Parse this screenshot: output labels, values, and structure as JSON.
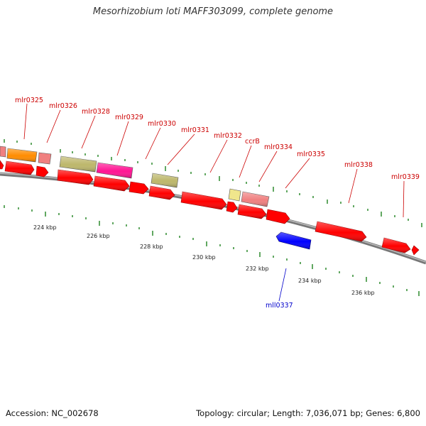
{
  "title": "Mesorhizobium loti MAFF303099, complete genome",
  "footer": {
    "accession": "Accession: NC_002678",
    "summary": "Topology: circular; Length: 7,036,071 bp; Genes: 6,800"
  },
  "colors": {
    "backbone": "#888888",
    "tick": "#2e8b2e",
    "label_forward": "#cc0000",
    "label_reverse": "#0000cc"
  },
  "genes": [
    {
      "id": "g-mlr0325",
      "name": "mlr0325",
      "color": "#ff8c00",
      "strand": "forward",
      "labeled": true
    },
    {
      "id": "g-mlr0326",
      "name": "mlr0326",
      "color": "#f08080",
      "strand": "forward",
      "labeled": true
    },
    {
      "id": "g-mlr0328",
      "name": "mlr0328",
      "color": "#bdb76b",
      "strand": "forward",
      "labeled": true
    },
    {
      "id": "g-mlr0329",
      "name": "mlr0329",
      "color": "#ff1493",
      "strand": "forward",
      "labeled": true
    },
    {
      "id": "g-mlr0330",
      "name": "mlr0330",
      "color": "#bdb76b",
      "strand": "forward",
      "labeled": true
    },
    {
      "id": "g-mlr0331",
      "name": "mlr0331",
      "color": "#ff0000",
      "strand": "forward",
      "labeled": true
    },
    {
      "id": "g-mlr0332",
      "name": "mlr0332",
      "color": "#ff0000",
      "strand": "forward",
      "labeled": true
    },
    {
      "id": "g-ccrB",
      "name": "ccrB",
      "color": "#f0e68c",
      "strand": "forward",
      "labeled": true
    },
    {
      "id": "g-mlr0334",
      "name": "mlr0334",
      "color": "#f08080",
      "strand": "forward",
      "labeled": true
    },
    {
      "id": "g-mlr0335",
      "name": "mlr0335",
      "color": "#ff0000",
      "strand": "forward",
      "labeled": true
    },
    {
      "id": "g-mll0337",
      "name": "mll0337",
      "color": "#0000ff",
      "strand": "reverse",
      "labeled": true
    },
    {
      "id": "g-mlr0338",
      "name": "mlr0338",
      "color": "#ff0000",
      "strand": "forward",
      "labeled": true
    },
    {
      "id": "g-mlr0339",
      "name": "mlr0339",
      "color": "#ff0000",
      "strand": "forward",
      "labeled": true
    }
  ],
  "ticks": [
    {
      "label": "224 kbp"
    },
    {
      "label": "226 kbp"
    },
    {
      "label": "228 kbp"
    },
    {
      "label": "230 kbp"
    },
    {
      "label": "232 kbp"
    },
    {
      "label": "234 kbp"
    },
    {
      "label": "236 kbp"
    }
  ]
}
